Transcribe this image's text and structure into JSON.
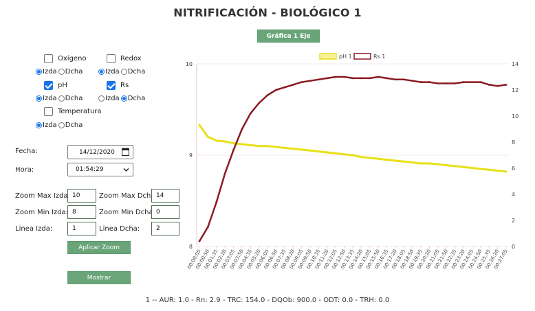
{
  "title": "NITRIFICACIÓN - BIOLÓGICO 1",
  "chart_toggle_button": "Gráfica 1 Eje",
  "variables": [
    {
      "label": "Oxígeno",
      "checked": false,
      "axis": "Izda"
    },
    {
      "label": "Redox",
      "checked": false,
      "axis": "Izda"
    },
    {
      "label": "pH",
      "checked": true,
      "axis": "Izda"
    },
    {
      "label": "Rs",
      "checked": true,
      "axis": "Dcha"
    },
    {
      "label": "Temperatura",
      "checked": false,
      "axis": "Izda"
    }
  ],
  "axis_options": {
    "left": "Izda",
    "right": "Dcha"
  },
  "fecha": {
    "label": "Fecha:",
    "value": "14/12/2020"
  },
  "hora": {
    "label": "Hora:",
    "value": "01:54:29"
  },
  "zoom": {
    "max_izda_label": "Zoom Max Izda:",
    "max_izda": "10",
    "max_dcha_label": "Zoom Max Dcha:",
    "max_dcha": "14",
    "min_izda_label": "Zoom Min Izda:",
    "min_izda": "8",
    "min_dcha_label": "Zoom Min Dcha:",
    "min_dcha": "0",
    "linea_izda_label": "Linea Izda:",
    "linea_izda": "1",
    "linea_dcha_label": "Linea Dcha:",
    "linea_dcha": "2",
    "apply_label": "Aplicar Zoom"
  },
  "show_button": "Mostrar",
  "footer": "1 -- AUR: 1.0 - Rn: 2.9 - TRC: 154.0 - DQOb: 900.0 - ODT: 0.0 - TRH: 0.0",
  "chart_data": {
    "type": "line",
    "legend": [
      "pH 1",
      "Rs 1"
    ],
    "legend_position": "top-center",
    "colors": {
      "ph": "#e8e018",
      "rs": "#8b1a22"
    },
    "y_left": {
      "min": 8,
      "max": 10,
      "ticks": [
        "8",
        "9",
        "10"
      ]
    },
    "y_right": {
      "min": 0,
      "max": 14,
      "ticks": [
        "0",
        "2",
        "4",
        "6",
        "8",
        "10",
        "12",
        "14"
      ]
    },
    "x_labels": [
      "00:00:05",
      "00:00:50",
      "00:01:35",
      "00:02:20",
      "00:03:05",
      "00:03:50",
      "00:04:35",
      "00:05:20",
      "00:06:05",
      "00:06:50",
      "00:07:35",
      "00:08:20",
      "00:09:05",
      "00:09:50",
      "00:10:35",
      "00:11:20",
      "00:12:05",
      "00:12:50",
      "00:13:35",
      "00:14:20",
      "00:15:05",
      "00:15:50",
      "00:16:35",
      "00:17:20",
      "00:18:05",
      "00:18:50",
      "00:19:35",
      "00:20:20",
      "00:21:05",
      "00:21:50",
      "00:22:35",
      "00:23:20",
      "00:24:05",
      "00:24:50",
      "00:25:35",
      "00:26:20",
      "00:27:05"
    ],
    "series": [
      {
        "name": "pH 1",
        "axis": "left",
        "values": [
          9.33,
          9.2,
          9.16,
          9.15,
          9.13,
          9.12,
          9.11,
          9.1,
          9.1,
          9.09,
          9.08,
          9.07,
          9.06,
          9.05,
          9.04,
          9.03,
          9.02,
          9.01,
          9.0,
          8.98,
          8.97,
          8.96,
          8.95,
          8.94,
          8.93,
          8.92,
          8.91,
          8.91,
          8.9,
          8.89,
          8.88,
          8.87,
          8.86,
          8.85,
          8.84,
          8.83,
          8.82
        ]
      },
      {
        "name": "Rs 1",
        "axis": "right",
        "values": [
          0.4,
          1.5,
          3.4,
          5.6,
          7.4,
          9.0,
          10.2,
          11.0,
          11.6,
          12.0,
          12.2,
          12.4,
          12.6,
          12.7,
          12.8,
          12.9,
          13.0,
          13.0,
          12.9,
          12.9,
          12.9,
          13.0,
          12.9,
          12.8,
          12.8,
          12.7,
          12.6,
          12.6,
          12.5,
          12.5,
          12.5,
          12.6,
          12.6,
          12.6,
          12.4,
          12.3,
          12.4
        ]
      }
    ]
  }
}
